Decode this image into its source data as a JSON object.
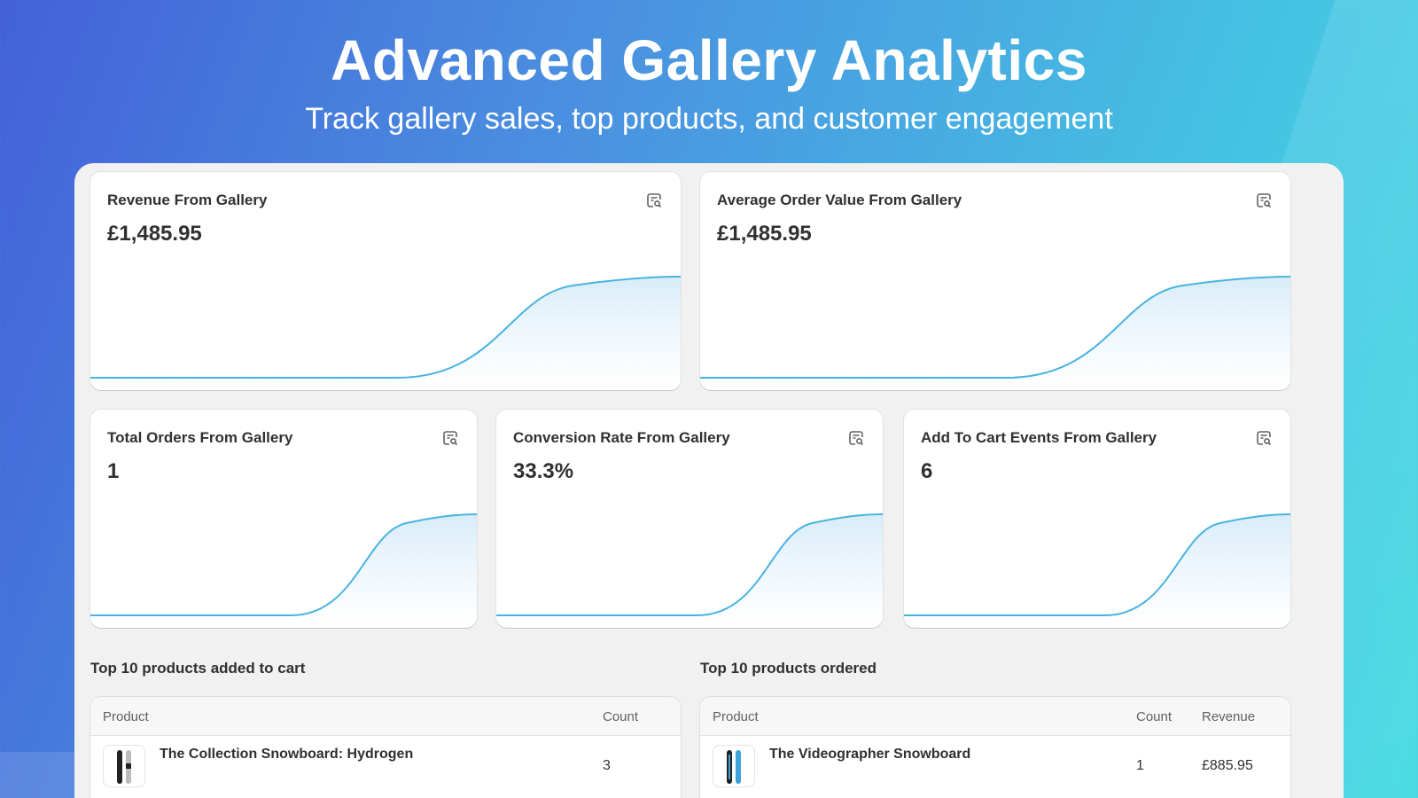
{
  "hero": {
    "title": "Advanced Gallery Analytics",
    "subtitle": "Track gallery sales, top products, and customer engagement"
  },
  "metrics": [
    {
      "title": "Revenue From Gallery",
      "value": "£1,485.95",
      "icon": "report-search-icon"
    },
    {
      "title": "Average Order Value From Gallery",
      "value": "£1,485.95",
      "icon": "report-search-icon"
    },
    {
      "title": "Total Orders From Gallery",
      "value": "1",
      "icon": "report-search-icon"
    },
    {
      "title": "Conversion Rate From Gallery",
      "value": "33.3%",
      "icon": "report-search-icon"
    },
    {
      "title": "Add To Cart Events From Gallery",
      "value": "6",
      "icon": "report-search-icon"
    }
  ],
  "tables": {
    "added_to_cart": {
      "title": "Top 10 products added to cart",
      "columns": [
        "Product",
        "Count"
      ],
      "rows": [
        {
          "product": "The Collection Snowboard: Hydrogen",
          "count": "3"
        }
      ]
    },
    "ordered": {
      "title": "Top 10 products ordered",
      "columns": [
        "Product",
        "Count",
        "Revenue"
      ],
      "rows": [
        {
          "product": "The Videographer Snowboard",
          "count": "1",
          "revenue": "£885.95"
        }
      ]
    }
  },
  "colors": {
    "line": "#49b3e0",
    "fill_top": "#d7ecf9",
    "fill_bottom": "#ffffff"
  }
}
